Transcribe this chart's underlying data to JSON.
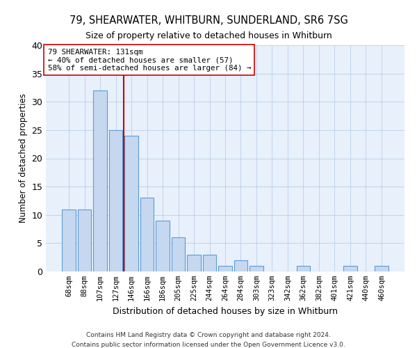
{
  "title1": "79, SHEARWATER, WHITBURN, SUNDERLAND, SR6 7SG",
  "title2": "Size of property relative to detached houses in Whitburn",
  "xlabel": "Distribution of detached houses by size in Whitburn",
  "ylabel": "Number of detached properties",
  "footnote1": "Contains HM Land Registry data © Crown copyright and database right 2024.",
  "footnote2": "Contains public sector information licensed under the Open Government Licence v3.0.",
  "categories": [
    "68sqm",
    "88sqm",
    "107sqm",
    "127sqm",
    "146sqm",
    "166sqm",
    "186sqm",
    "205sqm",
    "225sqm",
    "244sqm",
    "264sqm",
    "284sqm",
    "303sqm",
    "323sqm",
    "342sqm",
    "362sqm",
    "382sqm",
    "401sqm",
    "421sqm",
    "440sqm",
    "460sqm"
  ],
  "values": [
    11,
    11,
    32,
    25,
    24,
    13,
    9,
    6,
    3,
    3,
    1,
    2,
    1,
    0,
    0,
    1,
    0,
    0,
    1,
    0,
    1
  ],
  "bar_color": "#c5d8f0",
  "bar_edge_color": "#5b9bd5",
  "vline_x": 3.5,
  "vline_color": "#cc0000",
  "annotation_text": "79 SHEARWATER: 131sqm\n← 40% of detached houses are smaller (57)\n58% of semi-detached houses are larger (84) →",
  "annotation_box_color": "#ffffff",
  "annotation_box_edge_color": "#cc0000",
  "ylim": [
    0,
    40
  ],
  "yticks": [
    0,
    5,
    10,
    15,
    20,
    25,
    30,
    35,
    40
  ],
  "grid_color": "#b8cfe8",
  "background_color": "#e8f0fb"
}
